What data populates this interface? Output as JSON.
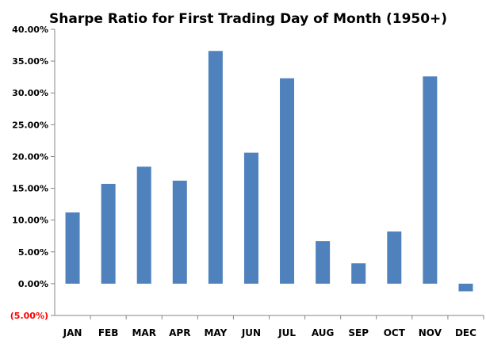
{
  "chart_data": {
    "type": "bar",
    "title": "Sharpe Ratio for First Trading  Day of Month (1950+)",
    "xlabel": "",
    "ylabel": "",
    "categories": [
      "JAN",
      "FEB",
      "MAR",
      "APR",
      "MAY",
      "JUN",
      "JUL",
      "AUG",
      "SEP",
      "OCT",
      "NOV",
      "DEC"
    ],
    "values": [
      11.2,
      15.7,
      18.4,
      16.2,
      36.6,
      20.6,
      32.3,
      6.7,
      3.2,
      8.2,
      32.6,
      -1.2
    ],
    "ylim": [
      -5,
      40
    ],
    "yticks": [
      40,
      35,
      30,
      25,
      20,
      15,
      10,
      5,
      0,
      -5
    ],
    "ytick_labels": [
      "40.00%",
      "35.00%",
      "30.00%",
      "25.00%",
      "20.00%",
      "15.00%",
      "10.00%",
      "5.00%",
      "0.00%",
      "(5.00%)"
    ],
    "grid": false,
    "bar_color": "#4f81bd",
    "negative_label_color": "#ff0000"
  }
}
